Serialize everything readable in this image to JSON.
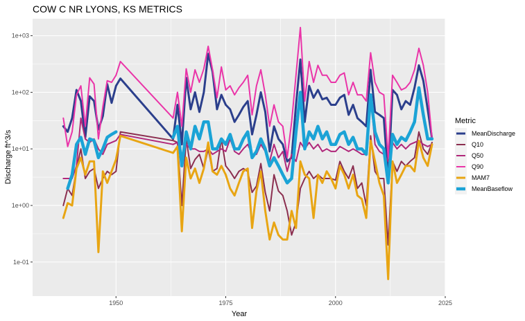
{
  "chart_data": {
    "type": "line",
    "title": "COW C NR LYONS, KS  METRICS",
    "xlabel": "Year",
    "ylabel": "Discharge ft^3/s",
    "xlim": [
      1931,
      2025
    ],
    "ylim": [
      0.025,
      2000
    ],
    "y_scale": "log",
    "x_ticks": [
      1950,
      1975,
      2000,
      2025
    ],
    "y_ticks": [
      0.1,
      1,
      10,
      100,
      1000
    ],
    "y_tick_labels": [
      "1e-01",
      "1e+00",
      "1e+01",
      "1e+02",
      "1e+03"
    ],
    "grid": true,
    "legend_title": "Metric",
    "legend_position": "right",
    "x": [
      1938,
      1939,
      1940,
      1941,
      1942,
      1943,
      1944,
      1945,
      1946,
      1947,
      1948,
      1949,
      1950,
      1951,
      1963,
      1964,
      1965,
      1966,
      1967,
      1968,
      1969,
      1970,
      1971,
      1972,
      1973,
      1974,
      1975,
      1976,
      1977,
      1978,
      1979,
      1980,
      1981,
      1982,
      1983,
      1984,
      1985,
      1986,
      1987,
      1988,
      1989,
      1990,
      1991,
      1992,
      1993,
      1994,
      1995,
      1996,
      1997,
      1998,
      1999,
      2000,
      2001,
      2002,
      2003,
      2004,
      2005,
      2006,
      2007,
      2008,
      2009,
      2010,
      2011,
      2012,
      2013,
      2014,
      2015,
      2016,
      2017,
      2018,
      2019,
      2020,
      2021,
      2022
    ],
    "series": [
      {
        "name": "MeanDischarge",
        "color": "#2b3f8c",
        "width": 3,
        "values": [
          25,
          20,
          35,
          110,
          70,
          16,
          85,
          70,
          22,
          38,
          140,
          65,
          130,
          175,
          15,
          60,
          12,
          180,
          50,
          100,
          45,
          100,
          480,
          230,
          50,
          90,
          60,
          50,
          30,
          40,
          55,
          70,
          18,
          40,
          100,
          45,
          9,
          25,
          15,
          12,
          6,
          7,
          60,
          380,
          30,
          130,
          80,
          110,
          75,
          80,
          60,
          60,
          80,
          90,
          40,
          60,
          35,
          30,
          25,
          250,
          45,
          40,
          35,
          3,
          110,
          90,
          50,
          70,
          60,
          120,
          300,
          160,
          50,
          15
        ]
      },
      {
        "name": "Q10",
        "color": "#8b2e4f",
        "width": 2,
        "values": [
          1,
          2,
          1.5,
          4.5,
          10,
          3,
          4,
          4.5,
          2,
          3,
          4,
          3.5,
          4,
          20,
          14,
          13,
          1,
          15,
          4.5,
          6.5,
          8,
          4.5,
          10,
          4,
          4.5,
          15,
          5,
          4,
          3,
          4,
          4.5,
          4,
          1.7,
          2.2,
          5.5,
          1.7,
          0.8,
          3.5,
          1.8,
          1.5,
          0.8,
          0.3,
          0.5,
          2,
          3,
          4,
          3,
          3.5,
          3,
          3,
          3,
          2.8,
          6,
          4,
          3,
          5,
          2,
          2.5,
          1,
          17,
          4,
          3,
          3,
          0.2,
          6,
          4,
          6,
          5,
          6,
          7,
          20,
          10,
          8,
          13
        ]
      },
      {
        "name": "Q50",
        "color": "#b0277a",
        "width": 2,
        "values": [
          3,
          3,
          3,
          5,
          35,
          15,
          13,
          15,
          10,
          8,
          12,
          13,
          14,
          18,
          12,
          13,
          7,
          12,
          10,
          10,
          9,
          9,
          10,
          8,
          9,
          10,
          9,
          15,
          9,
          8,
          10,
          12,
          8,
          8,
          12,
          9,
          6,
          12,
          7,
          9,
          4,
          8,
          6,
          13,
          10,
          13,
          10,
          12,
          9,
          10,
          9,
          9,
          11,
          10,
          9,
          10,
          9,
          8,
          8,
          90,
          12,
          9,
          8,
          6,
          13,
          10,
          12,
          10,
          12,
          13,
          14,
          12,
          11,
          12
        ]
      },
      {
        "name": "Q90",
        "color": "#ea34a8",
        "width": 2,
        "values": [
          35,
          11,
          20,
          90,
          130,
          25,
          180,
          140,
          15,
          55,
          160,
          150,
          200,
          350,
          35,
          100,
          25,
          260,
          100,
          250,
          150,
          260,
          650,
          250,
          80,
          280,
          110,
          130,
          90,
          120,
          150,
          200,
          40,
          130,
          250,
          90,
          25,
          60,
          30,
          25,
          7,
          30,
          200,
          1400,
          70,
          350,
          150,
          300,
          200,
          200,
          150,
          150,
          200,
          220,
          90,
          150,
          90,
          90,
          70,
          500,
          150,
          100,
          90,
          7,
          200,
          150,
          110,
          120,
          150,
          250,
          600,
          300,
          100,
          15
        ]
      },
      {
        "name": "MAM7",
        "color": "#e8a513",
        "width": 3,
        "values": [
          0.6,
          1.1,
          1,
          4.5,
          7,
          3.5,
          6,
          6,
          0.15,
          4,
          2.5,
          4,
          6.5,
          17,
          8.5,
          11,
          0.35,
          7,
          3,
          4.5,
          2.5,
          4.5,
          13,
          4,
          3.5,
          5,
          3.5,
          2,
          1.5,
          2.5,
          4,
          4.5,
          0.4,
          1.8,
          4,
          0.8,
          0.25,
          0.5,
          0.3,
          0.25,
          0.25,
          0.8,
          0.4,
          6,
          3.5,
          3,
          0.6,
          3.5,
          2.5,
          4,
          3,
          2,
          5,
          3.5,
          2,
          3.5,
          1.5,
          1.3,
          0.6,
          14,
          6,
          2.5,
          1.5,
          0.05,
          6,
          2.5,
          3.5,
          5,
          5,
          4,
          14,
          7,
          5,
          12
        ]
      },
      {
        "name": "MeanBaseflow",
        "color": "#1ba3d6",
        "width": 4.5,
        "values": [
          null,
          2,
          3.5,
          12,
          16,
          8,
          15,
          14,
          7,
          10,
          16,
          18,
          20,
          null,
          16,
          25,
          5,
          20,
          10,
          25,
          15,
          30,
          30,
          10,
          10,
          15,
          12,
          18,
          10,
          10,
          15,
          20,
          7,
          9,
          15,
          10,
          5,
          7,
          5,
          3.5,
          2.5,
          3,
          20,
          100,
          10,
          20,
          15,
          25,
          15,
          20,
          12,
          12,
          18,
          20,
          12,
          16,
          10,
          10,
          8,
          90,
          20,
          12,
          10,
          2.5,
          18,
          12,
          16,
          14,
          20,
          30,
          120,
          40,
          15,
          15
        ]
      }
    ]
  }
}
